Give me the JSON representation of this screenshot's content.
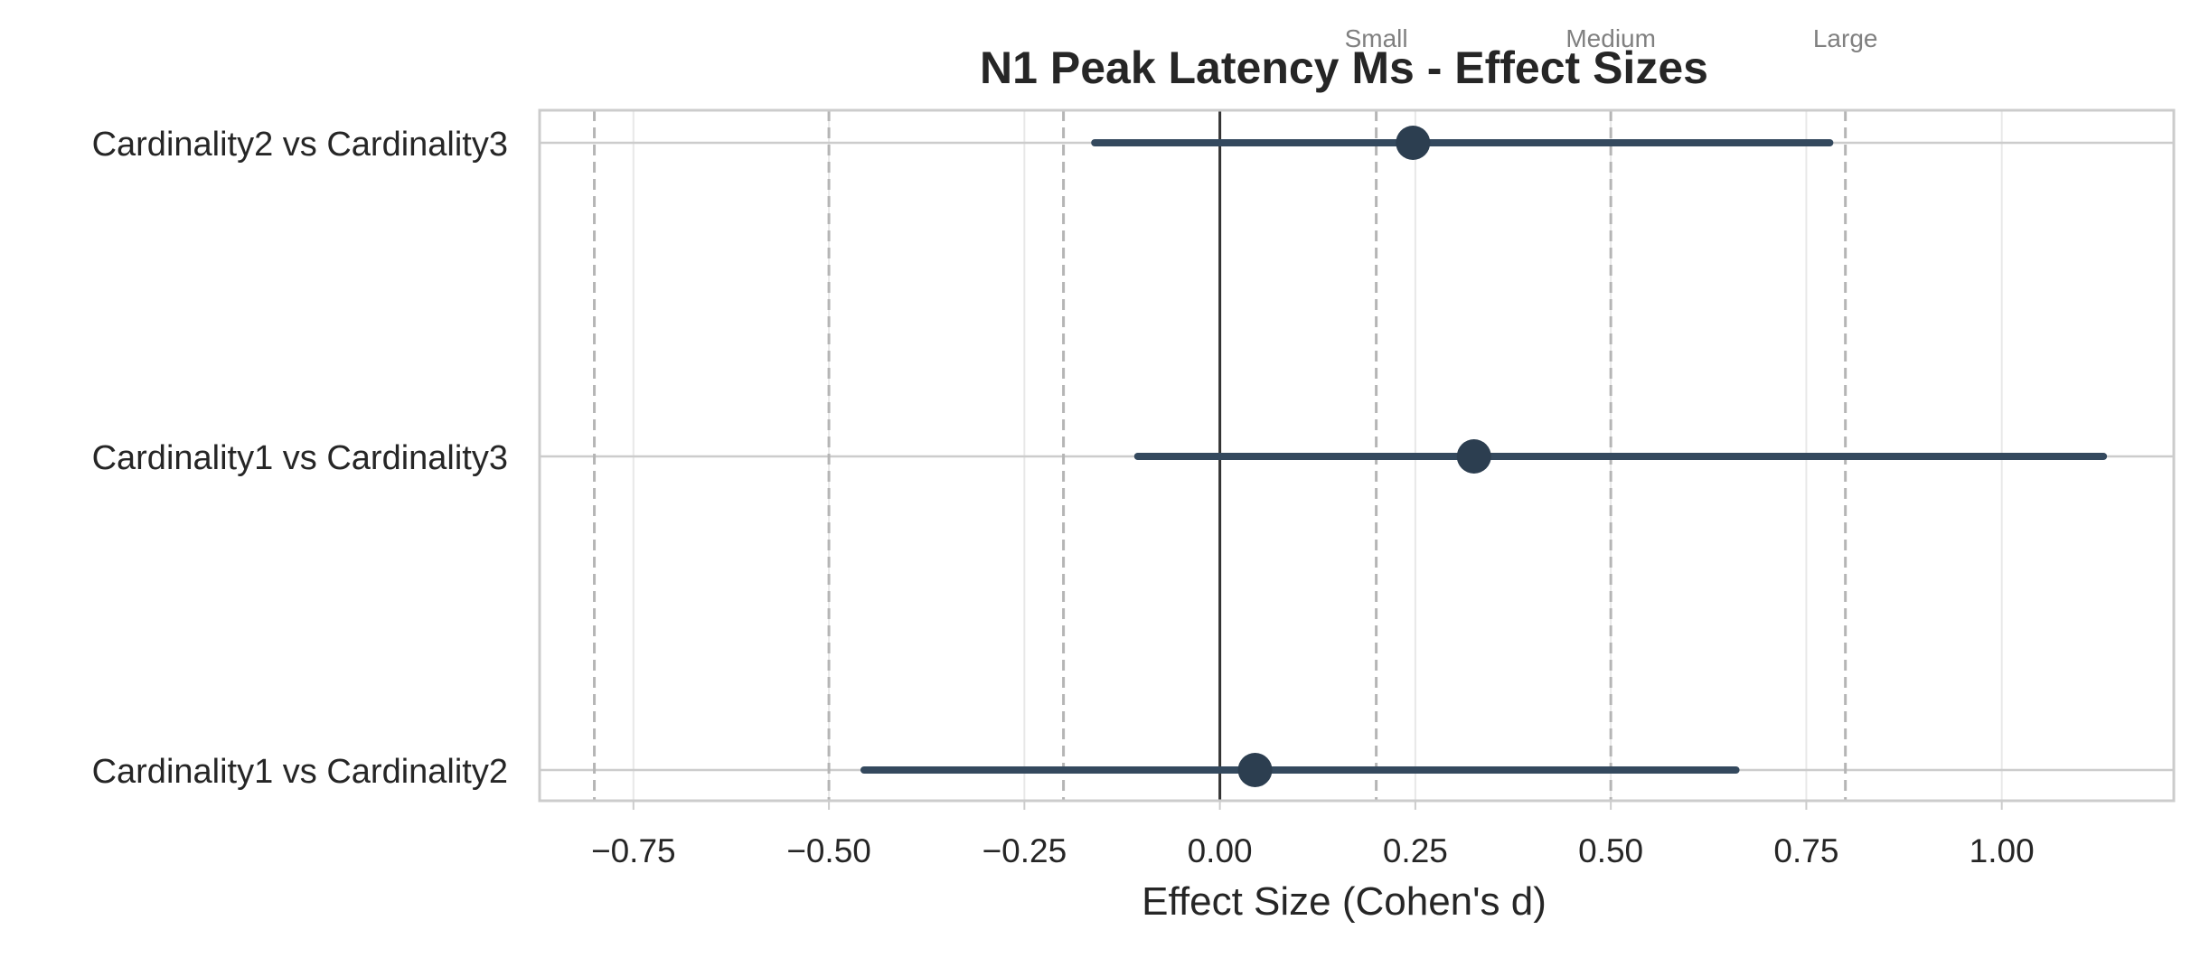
{
  "chart_data": {
    "type": "forest",
    "title": "N1 Peak Latency Ms - Effect Sizes",
    "xlabel": "Effect Size (Cohen's d)",
    "ylabel": "",
    "xlim": [
      -0.87,
      1.22
    ],
    "xticks": [
      -0.75,
      -0.5,
      -0.25,
      0.0,
      0.25,
      0.5,
      0.75,
      1.0
    ],
    "xtick_labels": [
      "−0.75",
      "−0.50",
      "−0.25",
      "0.00",
      "0.25",
      "0.50",
      "0.75",
      "1.00"
    ],
    "grid": true,
    "zero_line": 0,
    "reference_lines": [
      {
        "value": -0.8,
        "label": ""
      },
      {
        "value": -0.5,
        "label": ""
      },
      {
        "value": -0.2,
        "label": ""
      },
      {
        "value": 0.2,
        "label": "Small"
      },
      {
        "value": 0.5,
        "label": "Medium"
      },
      {
        "value": 0.8,
        "label": "Large"
      }
    ],
    "comparisons": [
      {
        "label": "Cardinality2 vs Cardinality3",
        "d": 0.247,
        "ci": [
          -0.16,
          0.78
        ]
      },
      {
        "label": "Cardinality1 vs Cardinality3",
        "d": 0.325,
        "ci": [
          -0.105,
          1.13
        ]
      },
      {
        "label": "Cardinality1 vs Cardinality2",
        "d": 0.045,
        "ci": [
          -0.455,
          0.66
        ]
      }
    ],
    "colors": {
      "marker": "#2c3e50",
      "errorbar": "#34495e",
      "zero_line": "#333333",
      "reference_line": "#b5b5b5",
      "reference_label": "#808080",
      "grid": "#e8e8e8",
      "frame": "#cccccc",
      "text": "#262626"
    }
  }
}
